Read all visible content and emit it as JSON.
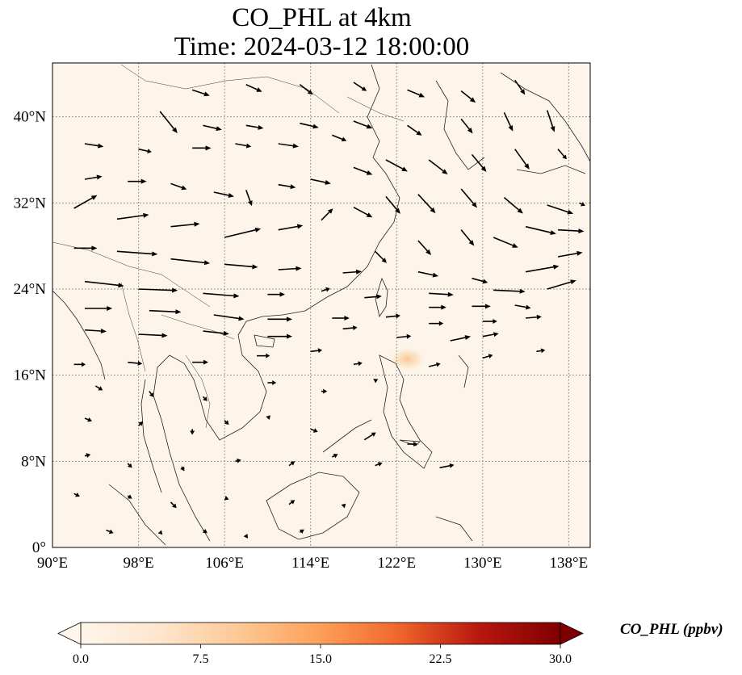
{
  "title": {
    "line1": "CO_PHL at 4km",
    "line2": "Time: 2024-03-12 18:00:00"
  },
  "axes": {
    "x_ticks": [
      "90°E",
      "98°E",
      "106°E",
      "114°E",
      "122°E",
      "130°E",
      "138°E"
    ],
    "y_ticks": [
      "0°",
      "8°N",
      "16°N",
      "24°N",
      "32°N",
      "40°N"
    ],
    "lon_range": [
      90,
      140
    ],
    "lat_range": [
      0,
      45
    ],
    "gridlines": true
  },
  "colorbar": {
    "label": "CO_PHL (ppbv)",
    "ticks": [
      "0.0",
      "7.5",
      "15.0",
      "22.5",
      "30.0"
    ],
    "range": [
      0,
      30
    ],
    "colormap": [
      "#fff5eb",
      "#fdd49e",
      "#fdae6b",
      "#f16913",
      "#d94801",
      "#a50f15",
      "#67000d"
    ],
    "extend": "both"
  },
  "map_data": {
    "background_color": "#fdf5e9",
    "hotspot": {
      "lon": 123.0,
      "lat": 17.5,
      "value": 6
    },
    "wind_vectors": [
      {
        "lon": 92,
        "lat": 31.5,
        "u": 3.2,
        "v": 1.8
      },
      {
        "lon": 96,
        "lat": 30.5,
        "u": 4.4,
        "v": 0.6
      },
      {
        "lon": 101,
        "lat": 29.8,
        "u": 4.0,
        "v": 0.4
      },
      {
        "lon": 106,
        "lat": 28.8,
        "u": 5.0,
        "v": 1.2
      },
      {
        "lon": 111,
        "lat": 29.5,
        "u": 3.4,
        "v": 0.6
      },
      {
        "lon": 115,
        "lat": 30.4,
        "u": 1.6,
        "v": 1.6
      },
      {
        "lon": 92,
        "lat": 27.8,
        "u": 3.2,
        "v": 0.0
      },
      {
        "lon": 96,
        "lat": 27.5,
        "u": 5.6,
        "v": -0.4
      },
      {
        "lon": 101,
        "lat": 26.8,
        "u": 5.4,
        "v": -0.6
      },
      {
        "lon": 106,
        "lat": 26.3,
        "u": 4.6,
        "v": -0.4
      },
      {
        "lon": 111,
        "lat": 25.8,
        "u": 3.2,
        "v": 0.2
      },
      {
        "lon": 117,
        "lat": 25.5,
        "u": 2.6,
        "v": 0.2
      },
      {
        "lon": 93,
        "lat": 24.7,
        "u": 5.4,
        "v": -0.6
      },
      {
        "lon": 98,
        "lat": 24.0,
        "u": 5.4,
        "v": -0.2
      },
      {
        "lon": 104,
        "lat": 23.6,
        "u": 5.0,
        "v": -0.4
      },
      {
        "lon": 110,
        "lat": 23.5,
        "u": 2.4,
        "v": 0.0
      },
      {
        "lon": 115,
        "lat": 23.8,
        "u": 1.2,
        "v": 0.4
      },
      {
        "lon": 93,
        "lat": 22.2,
        "u": 3.8,
        "v": 0.0
      },
      {
        "lon": 99,
        "lat": 22.0,
        "u": 4.4,
        "v": -0.2
      },
      {
        "lon": 105,
        "lat": 21.6,
        "u": 4.2,
        "v": -0.6
      },
      {
        "lon": 110,
        "lat": 21.2,
        "u": 3.4,
        "v": 0.0
      },
      {
        "lon": 116,
        "lat": 21.3,
        "u": 2.4,
        "v": 0.0
      },
      {
        "lon": 121,
        "lat": 21.4,
        "u": 2.0,
        "v": 0.2
      },
      {
        "lon": 93,
        "lat": 20.2,
        "u": 3.0,
        "v": -0.2
      },
      {
        "lon": 98,
        "lat": 19.8,
        "u": 4.0,
        "v": -0.2
      },
      {
        "lon": 104,
        "lat": 20.1,
        "u": 3.6,
        "v": -0.4
      },
      {
        "lon": 110,
        "lat": 19.6,
        "u": 3.4,
        "v": 0.0
      },
      {
        "lon": 117,
        "lat": 20.3,
        "u": 2.0,
        "v": 0.2
      },
      {
        "lon": 122,
        "lat": 19.5,
        "u": 2.0,
        "v": 0.2
      },
      {
        "lon": 127,
        "lat": 19.2,
        "u": 2.8,
        "v": 0.6
      },
      {
        "lon": 130,
        "lat": 19.6,
        "u": 2.2,
        "v": 0.4
      },
      {
        "lon": 125,
        "lat": 20.8,
        "u": 2.0,
        "v": 0.0
      },
      {
        "lon": 130,
        "lat": 21.0,
        "u": 2.0,
        "v": 0.0
      },
      {
        "lon": 134,
        "lat": 21.3,
        "u": 2.2,
        "v": 0.2
      },
      {
        "lon": 125,
        "lat": 22.3,
        "u": 2.4,
        "v": 0.0
      },
      {
        "lon": 129,
        "lat": 22.4,
        "u": 2.6,
        "v": 0.0
      },
      {
        "lon": 133,
        "lat": 22.5,
        "u": 2.2,
        "v": -0.4
      },
      {
        "lon": 119,
        "lat": 23.2,
        "u": 2.4,
        "v": 0.2
      },
      {
        "lon": 125,
        "lat": 23.6,
        "u": 3.4,
        "v": -0.2
      },
      {
        "lon": 131,
        "lat": 23.9,
        "u": 4.4,
        "v": -0.2
      },
      {
        "lon": 136,
        "lat": 24.0,
        "u": 4.0,
        "v": 1.2
      },
      {
        "lon": 124,
        "lat": 25.6,
        "u": 2.8,
        "v": -0.6
      },
      {
        "lon": 129,
        "lat": 25.0,
        "u": 2.2,
        "v": -0.6
      },
      {
        "lon": 134,
        "lat": 25.6,
        "u": 4.6,
        "v": 0.8
      },
      {
        "lon": 137,
        "lat": 27.0,
        "u": 3.4,
        "v": 0.6
      },
      {
        "lon": 120,
        "lat": 27.5,
        "u": 1.6,
        "v": -1.6
      },
      {
        "lon": 124,
        "lat": 28.5,
        "u": 1.8,
        "v": -2.0
      },
      {
        "lon": 128,
        "lat": 29.5,
        "u": 1.8,
        "v": -2.2
      },
      {
        "lon": 131,
        "lat": 28.8,
        "u": 3.4,
        "v": -1.4
      },
      {
        "lon": 134,
        "lat": 29.8,
        "u": 4.2,
        "v": -1.0
      },
      {
        "lon": 137,
        "lat": 29.5,
        "u": 3.6,
        "v": -0.2
      },
      {
        "lon": 118,
        "lat": 31.6,
        "u": 2.6,
        "v": -1.4
      },
      {
        "lon": 121,
        "lat": 32.6,
        "u": 2.0,
        "v": -2.4
      },
      {
        "lon": 124,
        "lat": 32.8,
        "u": 2.4,
        "v": -2.6
      },
      {
        "lon": 128,
        "lat": 33.3,
        "u": 2.2,
        "v": -2.6
      },
      {
        "lon": 132,
        "lat": 32.5,
        "u": 2.6,
        "v": -2.2
      },
      {
        "lon": 136,
        "lat": 31.8,
        "u": 3.6,
        "v": -1.2
      },
      {
        "lon": 139,
        "lat": 32.0,
        "u": 0.8,
        "v": -0.4
      },
      {
        "lon": 114,
        "lat": 34.2,
        "u": 2.8,
        "v": -0.6
      },
      {
        "lon": 118,
        "lat": 35.3,
        "u": 2.6,
        "v": -1.0
      },
      {
        "lon": 121,
        "lat": 36.0,
        "u": 3.0,
        "v": -1.6
      },
      {
        "lon": 125,
        "lat": 36.0,
        "u": 2.6,
        "v": -2.0
      },
      {
        "lon": 129,
        "lat": 36.5,
        "u": 2.0,
        "v": -2.4
      },
      {
        "lon": 133,
        "lat": 37.0,
        "u": 2.0,
        "v": -2.8
      },
      {
        "lon": 137,
        "lat": 37.0,
        "u": 1.2,
        "v": -1.4
      },
      {
        "lon": 93,
        "lat": 34.2,
        "u": 2.4,
        "v": 0.4
      },
      {
        "lon": 97,
        "lat": 34.0,
        "u": 2.6,
        "v": 0.0
      },
      {
        "lon": 101,
        "lat": 33.8,
        "u": 2.2,
        "v": -0.8
      },
      {
        "lon": 105,
        "lat": 33.0,
        "u": 2.8,
        "v": -0.6
      },
      {
        "lon": 108,
        "lat": 33.2,
        "u": 0.8,
        "v": -2.2
      },
      {
        "lon": 111,
        "lat": 33.7,
        "u": 2.4,
        "v": -0.4
      },
      {
        "lon": 93,
        "lat": 37.5,
        "u": 2.6,
        "v": -0.4
      },
      {
        "lon": 98,
        "lat": 37.0,
        "u": 1.8,
        "v": -0.4
      },
      {
        "lon": 103,
        "lat": 37.1,
        "u": 2.6,
        "v": 0.0
      },
      {
        "lon": 107,
        "lat": 37.5,
        "u": 2.2,
        "v": -0.4
      },
      {
        "lon": 111,
        "lat": 37.5,
        "u": 2.8,
        "v": -0.4
      },
      {
        "lon": 116,
        "lat": 38.3,
        "u": 2.0,
        "v": -0.8
      },
      {
        "lon": 100,
        "lat": 40.5,
        "u": 2.4,
        "v": -3.0
      },
      {
        "lon": 104,
        "lat": 39.2,
        "u": 2.6,
        "v": -0.6
      },
      {
        "lon": 108,
        "lat": 39.2,
        "u": 2.4,
        "v": -0.4
      },
      {
        "lon": 113,
        "lat": 39.4,
        "u": 2.6,
        "v": -0.6
      },
      {
        "lon": 118,
        "lat": 39.6,
        "u": 2.6,
        "v": -1.0
      },
      {
        "lon": 123,
        "lat": 39.2,
        "u": 2.0,
        "v": -1.4
      },
      {
        "lon": 128,
        "lat": 39.8,
        "u": 1.6,
        "v": -2.0
      },
      {
        "lon": 132,
        "lat": 40.4,
        "u": 1.2,
        "v": -2.6
      },
      {
        "lon": 136,
        "lat": 40.6,
        "u": 1.0,
        "v": -3.0
      },
      {
        "lon": 103,
        "lat": 42.5,
        "u": 2.4,
        "v": -0.8
      },
      {
        "lon": 108,
        "lat": 43.0,
        "u": 2.2,
        "v": -1.0
      },
      {
        "lon": 113,
        "lat": 43.0,
        "u": 1.8,
        "v": -1.4
      },
      {
        "lon": 118,
        "lat": 43.2,
        "u": 1.8,
        "v": -1.2
      },
      {
        "lon": 123,
        "lat": 42.5,
        "u": 2.4,
        "v": -1.0
      },
      {
        "lon": 128,
        "lat": 42.4,
        "u": 2.0,
        "v": -1.6
      },
      {
        "lon": 133,
        "lat": 43.4,
        "u": 1.4,
        "v": -2.0
      },
      {
        "lon": 92,
        "lat": 17.0,
        "u": 1.6,
        "v": 0.0
      },
      {
        "lon": 97,
        "lat": 17.2,
        "u": 2.0,
        "v": -0.2
      },
      {
        "lon": 103,
        "lat": 17.2,
        "u": 2.2,
        "v": 0.0
      },
      {
        "lon": 109,
        "lat": 17.8,
        "u": 1.8,
        "v": 0.0
      },
      {
        "lon": 114,
        "lat": 18.2,
        "u": 1.6,
        "v": 0.2
      },
      {
        "lon": 118,
        "lat": 17.0,
        "u": 1.2,
        "v": 0.2
      },
      {
        "lon": 125,
        "lat": 16.8,
        "u": 1.6,
        "v": 0.4
      },
      {
        "lon": 130,
        "lat": 17.6,
        "u": 1.4,
        "v": 0.4
      },
      {
        "lon": 135,
        "lat": 18.2,
        "u": 1.2,
        "v": 0.2
      },
      {
        "lon": 94,
        "lat": 15.0,
        "u": 1.0,
        "v": -0.6
      },
      {
        "lon": 99,
        "lat": 14.5,
        "u": 0.6,
        "v": -0.8
      },
      {
        "lon": 104,
        "lat": 14.0,
        "u": 0.6,
        "v": -0.6
      },
      {
        "lon": 110,
        "lat": 15.3,
        "u": 1.2,
        "v": 0.0
      },
      {
        "lon": 115,
        "lat": 14.5,
        "u": 0.8,
        "v": 0.0
      },
      {
        "lon": 120,
        "lat": 15.5,
        "u": 0.4,
        "v": 0.2
      },
      {
        "lon": 93,
        "lat": 12.0,
        "u": 1.0,
        "v": -0.4
      },
      {
        "lon": 98,
        "lat": 11.3,
        "u": 0.6,
        "v": 0.6
      },
      {
        "lon": 103,
        "lat": 11.0,
        "u": 0.0,
        "v": -0.8
      },
      {
        "lon": 106,
        "lat": 11.8,
        "u": 0.6,
        "v": -0.6
      },
      {
        "lon": 110,
        "lat": 12.0,
        "u": 0.4,
        "v": 0.4
      },
      {
        "lon": 114,
        "lat": 11.0,
        "u": 1.0,
        "v": -0.4
      },
      {
        "lon": 119,
        "lat": 10.0,
        "u": 1.6,
        "v": 1.0
      },
      {
        "lon": 123,
        "lat": 9.6,
        "u": 1.4,
        "v": 0.0
      },
      {
        "lon": 93,
        "lat": 8.5,
        "u": 0.8,
        "v": 0.2
      },
      {
        "lon": 97,
        "lat": 7.8,
        "u": 0.6,
        "v": -0.6
      },
      {
        "lon": 102,
        "lat": 7.5,
        "u": 0.4,
        "v": -0.6
      },
      {
        "lon": 107,
        "lat": 8.0,
        "u": 0.8,
        "v": 0.2
      },
      {
        "lon": 112,
        "lat": 7.6,
        "u": 0.8,
        "v": 0.6
      },
      {
        "lon": 116,
        "lat": 8.4,
        "u": 0.8,
        "v": 0.4
      },
      {
        "lon": 120,
        "lat": 7.6,
        "u": 1.0,
        "v": 0.4
      },
      {
        "lon": 126,
        "lat": 7.4,
        "u": 2.0,
        "v": 0.4
      },
      {
        "lon": 92,
        "lat": 5.0,
        "u": 0.8,
        "v": -0.4
      },
      {
        "lon": 97,
        "lat": 4.8,
        "u": 0.6,
        "v": -0.4
      },
      {
        "lon": 101,
        "lat": 4.2,
        "u": 0.8,
        "v": -0.8
      },
      {
        "lon": 106,
        "lat": 4.6,
        "u": 0.6,
        "v": -0.2
      },
      {
        "lon": 112,
        "lat": 4.0,
        "u": 0.8,
        "v": 0.6
      },
      {
        "lon": 117,
        "lat": 3.8,
        "u": 0.4,
        "v": 0.4
      },
      {
        "lon": 95,
        "lat": 1.6,
        "u": 1.0,
        "v": -0.4
      },
      {
        "lon": 100,
        "lat": 1.2,
        "u": 0.2,
        "v": 0.6
      },
      {
        "lon": 104,
        "lat": 1.6,
        "u": 0.6,
        "v": -0.4
      },
      {
        "lon": 108,
        "lat": 1.0,
        "u": 0.2,
        "v": 0.4
      },
      {
        "lon": 113,
        "lat": 1.4,
        "u": 0.6,
        "v": 0.4
      }
    ]
  }
}
